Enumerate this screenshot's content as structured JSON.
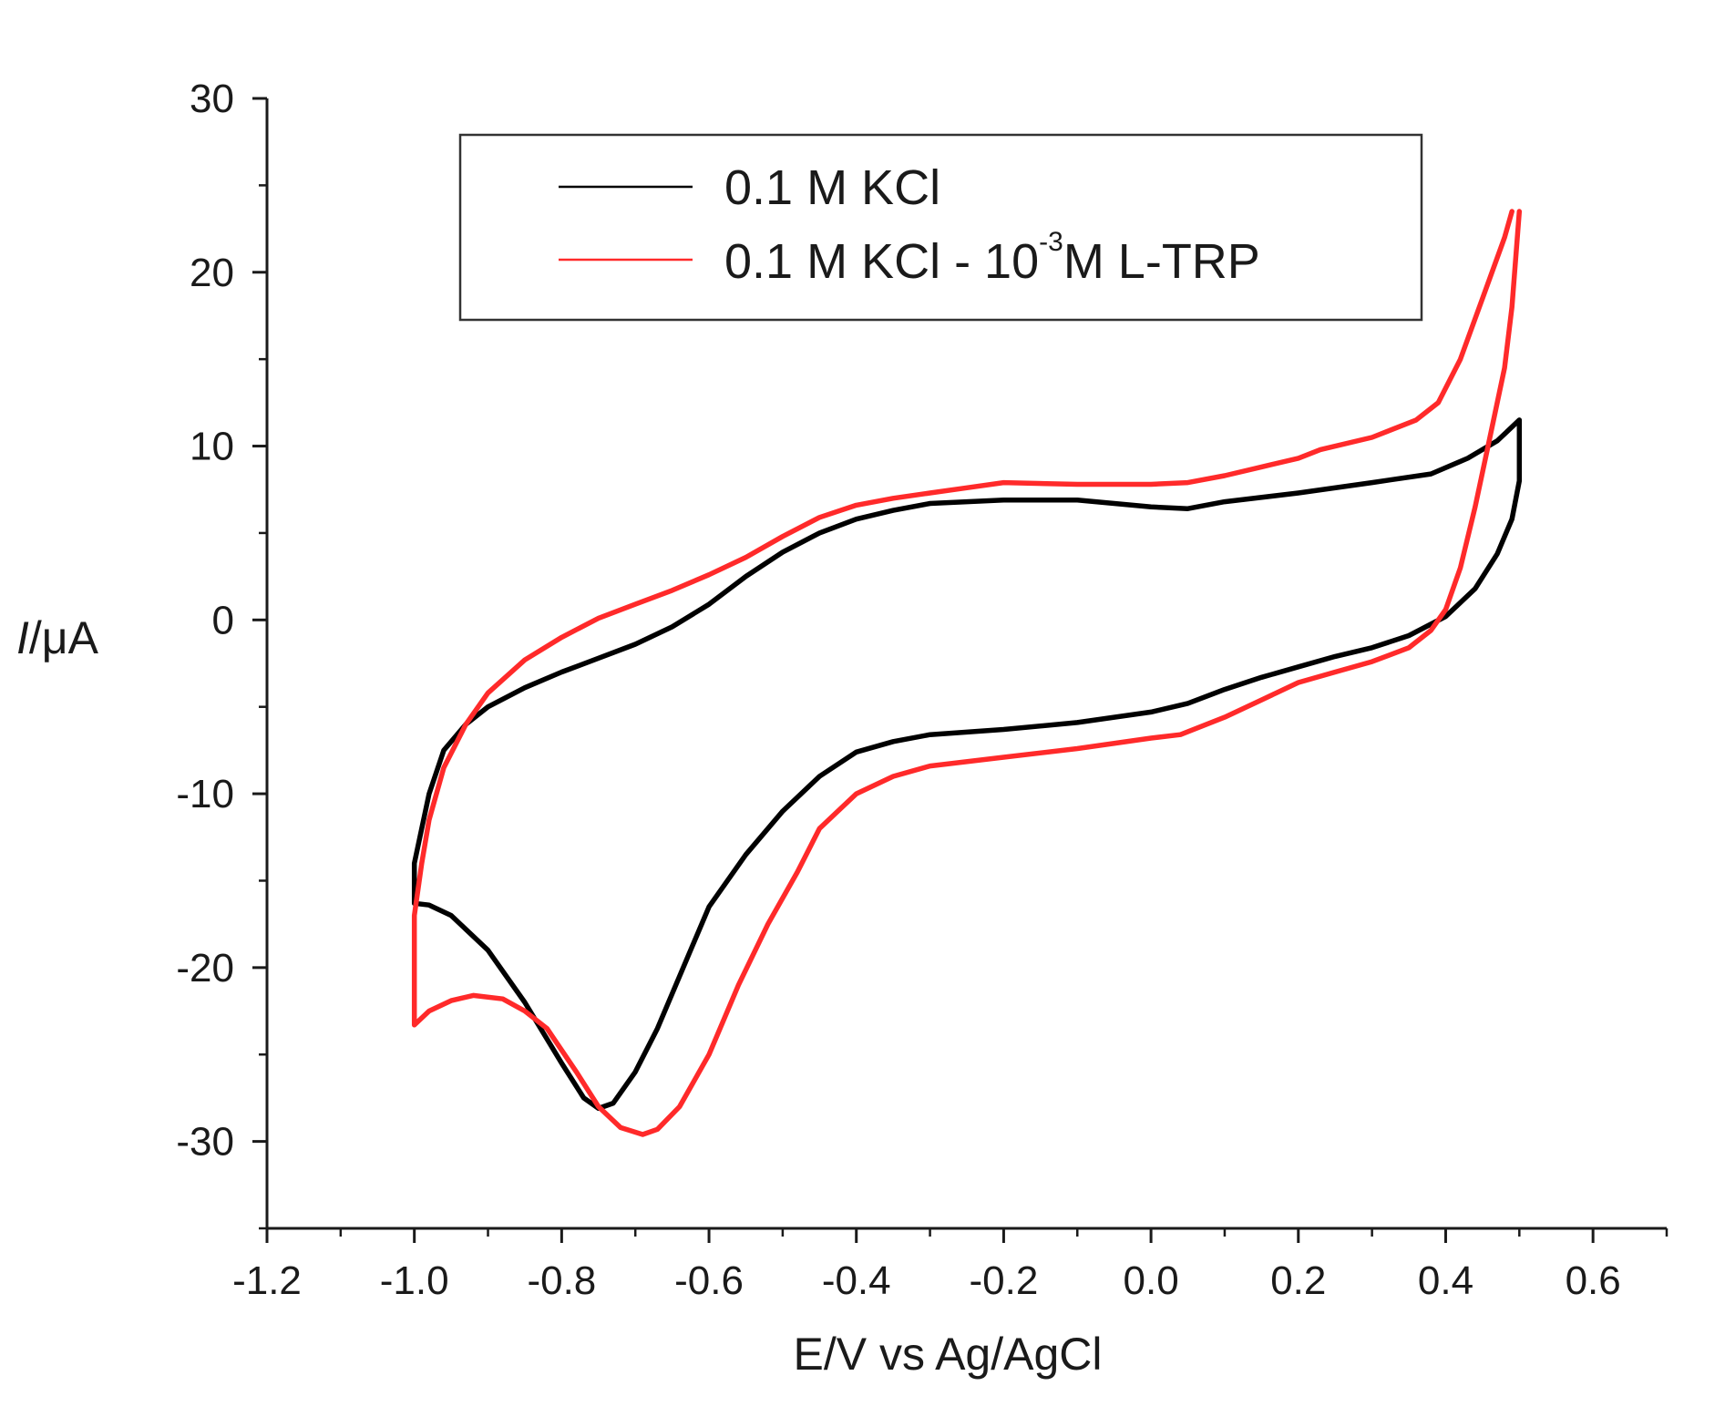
{
  "chart_data": {
    "type": "line",
    "title": "",
    "xlabel": "E/V vs Ag/AgCl",
    "ylabel": {
      "italic": "I",
      "rest": "/μA"
    },
    "xlim": [
      -1.2,
      0.7
    ],
    "ylim": [
      -35,
      30
    ],
    "xticks": [
      -1.2,
      -1.0,
      -0.8,
      -0.6,
      -0.4,
      -0.2,
      0.0,
      0.2,
      0.4,
      0.6
    ],
    "xtick_labels": [
      "-1.2",
      "-1.0",
      "-0.8",
      "-0.6",
      "-0.4",
      "-0.2",
      "0.0",
      "0.2",
      "0.4",
      "0.6"
    ],
    "yticks": [
      -30,
      -20,
      -10,
      0,
      10,
      20,
      30
    ],
    "ytick_labels": [
      "-30",
      "-20",
      "-10",
      "0",
      "10",
      "20",
      "30"
    ],
    "grid": false,
    "legend_position": "top",
    "series": [
      {
        "name": "0.1 M KCl",
        "legend": {
          "text": "0.1 M KCl"
        },
        "color": "#000000",
        "points": [
          [
            0.5,
            11.5
          ],
          [
            0.47,
            10.3
          ],
          [
            0.43,
            9.3
          ],
          [
            0.38,
            8.4
          ],
          [
            0.3,
            7.9
          ],
          [
            0.2,
            7.3
          ],
          [
            0.1,
            6.8
          ],
          [
            0.05,
            6.4
          ],
          [
            0.0,
            6.5
          ],
          [
            -0.05,
            6.7
          ],
          [
            -0.1,
            6.9
          ],
          [
            -0.2,
            6.9
          ],
          [
            -0.3,
            6.7
          ],
          [
            -0.35,
            6.3
          ],
          [
            -0.4,
            5.8
          ],
          [
            -0.45,
            5.0
          ],
          [
            -0.5,
            3.9
          ],
          [
            -0.55,
            2.5
          ],
          [
            -0.6,
            0.9
          ],
          [
            -0.65,
            -0.4
          ],
          [
            -0.7,
            -1.4
          ],
          [
            -0.75,
            -2.2
          ],
          [
            -0.8,
            -3.0
          ],
          [
            -0.85,
            -3.9
          ],
          [
            -0.9,
            -5.0
          ],
          [
            -0.93,
            -6.0
          ],
          [
            -0.96,
            -7.5
          ],
          [
            -0.98,
            -10.0
          ],
          [
            -0.99,
            -12.0
          ],
          [
            -1.0,
            -14.0
          ],
          [
            -1.0,
            -16.3
          ],
          [
            -0.98,
            -16.4
          ],
          [
            -0.95,
            -17.0
          ],
          [
            -0.9,
            -19.0
          ],
          [
            -0.85,
            -22.0
          ],
          [
            -0.8,
            -25.5
          ],
          [
            -0.77,
            -27.5
          ],
          [
            -0.75,
            -28.1
          ],
          [
            -0.73,
            -27.8
          ],
          [
            -0.7,
            -26.0
          ],
          [
            -0.67,
            -23.5
          ],
          [
            -0.63,
            -19.5
          ],
          [
            -0.6,
            -16.5
          ],
          [
            -0.55,
            -13.5
          ],
          [
            -0.5,
            -11.0
          ],
          [
            -0.45,
            -9.0
          ],
          [
            -0.4,
            -7.6
          ],
          [
            -0.35,
            -7.0
          ],
          [
            -0.3,
            -6.6
          ],
          [
            -0.2,
            -6.3
          ],
          [
            -0.1,
            -5.9
          ],
          [
            0.0,
            -5.3
          ],
          [
            0.05,
            -4.8
          ],
          [
            0.1,
            -4.0
          ],
          [
            0.15,
            -3.3
          ],
          [
            0.2,
            -2.7
          ],
          [
            0.25,
            -2.1
          ],
          [
            0.3,
            -1.6
          ],
          [
            0.35,
            -0.9
          ],
          [
            0.4,
            0.2
          ],
          [
            0.44,
            1.8
          ],
          [
            0.47,
            3.8
          ],
          [
            0.49,
            5.8
          ],
          [
            0.5,
            8.0
          ],
          [
            0.5,
            11.5
          ]
        ]
      },
      {
        "name": "0.1 M KCl - 10-3 M L-TRP",
        "legend": {
          "text1": "0.1 M KCl - 10",
          "sup": "-3",
          "text2": "M L-TRP"
        },
        "color": "#ff2a2a",
        "points": [
          [
            0.49,
            23.5
          ],
          [
            0.48,
            22.0
          ],
          [
            0.45,
            18.5
          ],
          [
            0.42,
            15.0
          ],
          [
            0.39,
            12.5
          ],
          [
            0.36,
            11.5
          ],
          [
            0.3,
            10.5
          ],
          [
            0.23,
            9.8
          ],
          [
            0.2,
            9.3
          ],
          [
            0.15,
            8.8
          ],
          [
            0.1,
            8.3
          ],
          [
            0.05,
            7.9
          ],
          [
            0.0,
            7.8
          ],
          [
            -0.1,
            7.8
          ],
          [
            -0.2,
            7.9
          ],
          [
            -0.25,
            7.6
          ],
          [
            -0.3,
            7.3
          ],
          [
            -0.35,
            7.0
          ],
          [
            -0.4,
            6.6
          ],
          [
            -0.45,
            5.9
          ],
          [
            -0.5,
            4.8
          ],
          [
            -0.55,
            3.6
          ],
          [
            -0.6,
            2.6
          ],
          [
            -0.65,
            1.7
          ],
          [
            -0.7,
            0.9
          ],
          [
            -0.75,
            0.1
          ],
          [
            -0.8,
            -1.0
          ],
          [
            -0.85,
            -2.3
          ],
          [
            -0.9,
            -4.2
          ],
          [
            -0.93,
            -6.0
          ],
          [
            -0.96,
            -8.5
          ],
          [
            -0.98,
            -11.5
          ],
          [
            -0.99,
            -14.0
          ],
          [
            -1.0,
            -17.0
          ],
          [
            -1.0,
            -23.3
          ],
          [
            -0.98,
            -22.5
          ],
          [
            -0.95,
            -21.9
          ],
          [
            -0.92,
            -21.6
          ],
          [
            -0.88,
            -21.8
          ],
          [
            -0.85,
            -22.5
          ],
          [
            -0.82,
            -23.5
          ],
          [
            -0.78,
            -26.0
          ],
          [
            -0.75,
            -28.0
          ],
          [
            -0.72,
            -29.2
          ],
          [
            -0.69,
            -29.6
          ],
          [
            -0.67,
            -29.3
          ],
          [
            -0.64,
            -28.0
          ],
          [
            -0.6,
            -25.0
          ],
          [
            -0.56,
            -21.0
          ],
          [
            -0.52,
            -17.5
          ],
          [
            -0.48,
            -14.5
          ],
          [
            -0.45,
            -12.0
          ],
          [
            -0.4,
            -10.0
          ],
          [
            -0.35,
            -9.0
          ],
          [
            -0.3,
            -8.4
          ],
          [
            -0.2,
            -7.9
          ],
          [
            -0.1,
            -7.4
          ],
          [
            0.0,
            -6.8
          ],
          [
            0.04,
            -6.6
          ],
          [
            0.1,
            -5.6
          ],
          [
            0.15,
            -4.6
          ],
          [
            0.2,
            -3.6
          ],
          [
            0.25,
            -3.0
          ],
          [
            0.3,
            -2.4
          ],
          [
            0.35,
            -1.6
          ],
          [
            0.38,
            -0.6
          ],
          [
            0.4,
            0.6
          ],
          [
            0.42,
            3.0
          ],
          [
            0.44,
            6.5
          ],
          [
            0.46,
            10.5
          ],
          [
            0.48,
            14.5
          ],
          [
            0.49,
            18.0
          ],
          [
            0.5,
            23.5
          ]
        ]
      }
    ]
  }
}
